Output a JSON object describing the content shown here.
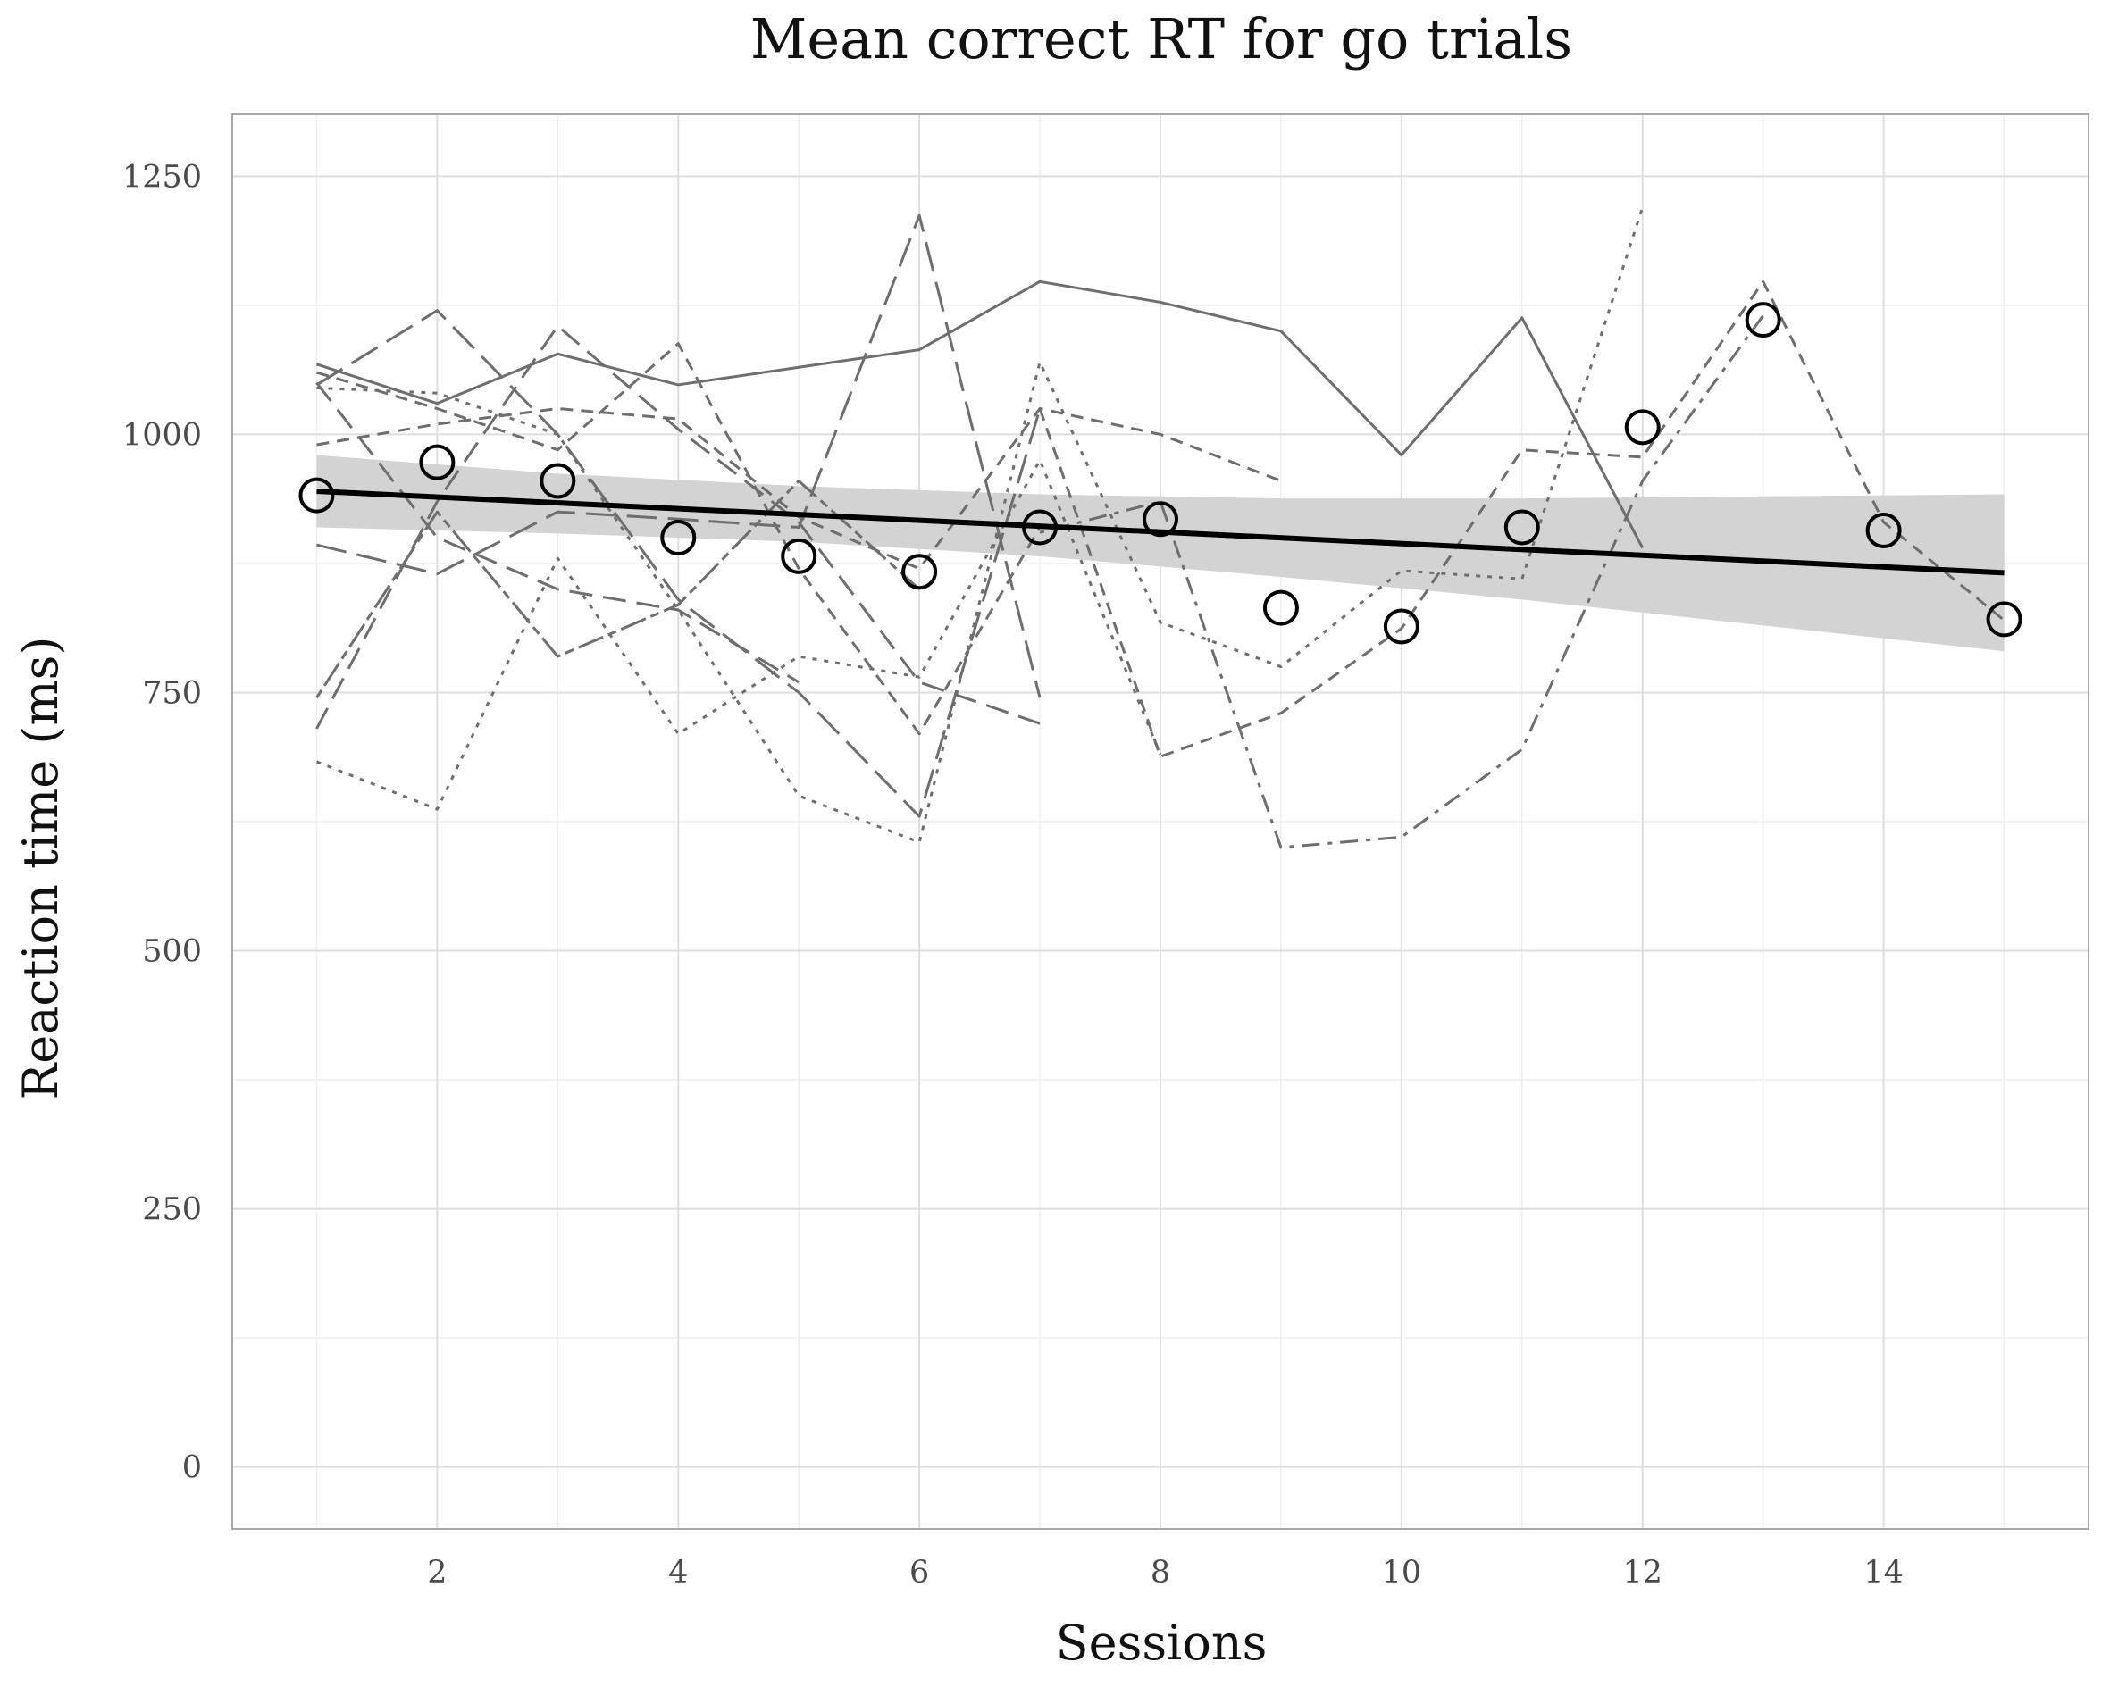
{
  "chart_data": {
    "type": "line",
    "title": "Mean correct RT for go trials",
    "xlabel": "Sessions",
    "ylabel": "Reaction time (ms)",
    "xlim": [
      0.3,
      15.7
    ],
    "ylim": [
      -60,
      1310
    ],
    "x_ticks": [
      2,
      4,
      6,
      8,
      10,
      12,
      14
    ],
    "x_tick_labels": [
      "2",
      "4",
      "6",
      "8",
      "10",
      "12",
      "14"
    ],
    "y_ticks": [
      0,
      250,
      500,
      750,
      1000,
      1250
    ],
    "y_tick_labels": [
      "0",
      "250",
      "500",
      "750",
      "1000",
      "1250"
    ],
    "grid": true,
    "legend": "none",
    "colors": {
      "panel_border": "#a8a8a8",
      "grid_major": "#dedede",
      "grid_minor": "#eeeeee",
      "individual_lines": "#6e6e6e",
      "fit_line": "#000000",
      "confidence_band": "#d3d3d3",
      "mean_points": "#000000"
    },
    "mean_points": {
      "x": [
        1,
        2,
        3,
        4,
        5,
        6,
        7,
        8,
        9,
        10,
        11,
        12,
        13,
        14,
        15
      ],
      "values": [
        941,
        973,
        955,
        900,
        882,
        867,
        910,
        918,
        832,
        814,
        910,
        1007,
        1111,
        907,
        821
      ]
    },
    "fit_line": {
      "x": [
        1,
        15
      ],
      "values": [
        945,
        866
      ]
    },
    "confidence_band": {
      "x": [
        1,
        3,
        5,
        7,
        9,
        11,
        13,
        15
      ],
      "upper": [
        980,
        962,
        950,
        942,
        938,
        938,
        940,
        942
      ],
      "lower": [
        910,
        904,
        896,
        882,
        862,
        840,
        815,
        790
      ]
    },
    "individual_series": [
      {
        "x": [
          1,
          2,
          3,
          4,
          5,
          6,
          7,
          8,
          9,
          10,
          11,
          12
        ],
        "values": [
          1068,
          1030,
          1078,
          1048,
          1065,
          1082,
          1148,
          1128,
          1100,
          980,
          1113,
          890
        ],
        "dash": "solid"
      },
      {
        "x": [
          1,
          2,
          3,
          4,
          5,
          6,
          7
        ],
        "values": [
          893,
          865,
          925,
          918,
          910,
          1212,
          745
        ],
        "dash": "long"
      },
      {
        "x": [
          1,
          2,
          3,
          4,
          5,
          6,
          7
        ],
        "values": [
          1048,
          1120,
          1000,
          840,
          750,
          630,
          1025
        ],
        "dash": "long"
      },
      {
        "x": [
          1,
          2,
          3,
          4,
          5,
          6,
          7,
          8,
          9
        ],
        "values": [
          990,
          1010,
          1025,
          1015,
          920,
          870,
          1025,
          1000,
          955
        ],
        "dash": "dashed"
      },
      {
        "x": [
          1,
          2,
          3,
          4,
          5,
          6,
          7,
          8,
          9,
          10,
          11,
          12
        ],
        "values": [
          1045,
          1040,
          1000,
          830,
          650,
          605,
          1070,
          818,
          775,
          868,
          860,
          1220
        ],
        "dash": "dotted"
      },
      {
        "x": [
          1,
          2,
          3,
          4,
          5,
          6,
          7,
          8
        ],
        "values": [
          683,
          637,
          880,
          710,
          785,
          765,
          975,
          690
        ],
        "dash": "dotted"
      },
      {
        "x": [
          1,
          2,
          3,
          4,
          5,
          6,
          7
        ],
        "values": [
          715,
          935,
          1105,
          1005,
          915,
          760,
          720
        ],
        "dash": "longdash"
      },
      {
        "x": [
          1,
          2,
          3,
          4,
          5,
          6,
          7
        ],
        "values": [
          1060,
          1025,
          985,
          1088,
          870,
          710,
          910
        ],
        "dash": "dashed"
      },
      {
        "x": [
          7,
          8,
          9,
          10,
          11,
          12,
          13,
          14,
          15
        ],
        "values": [
          1025,
          688,
          730,
          812,
          985,
          978,
          1148,
          915,
          820
        ],
        "dash": "dashed"
      },
      {
        "x": [
          7,
          8,
          9,
          10,
          11,
          12,
          13
        ],
        "values": [
          905,
          935,
          600,
          610,
          695,
          955,
          1115
        ],
        "dash": "dotdash"
      },
      {
        "x": [
          1,
          2,
          3,
          4,
          5,
          6
        ],
        "values": [
          745,
          925,
          785,
          835,
          955,
          850
        ],
        "dash": "twodash"
      },
      {
        "x": [
          1,
          2,
          3,
          4,
          5
        ],
        "values": [
          1050,
          900,
          850,
          830,
          760
        ],
        "dash": "longdash"
      }
    ]
  }
}
